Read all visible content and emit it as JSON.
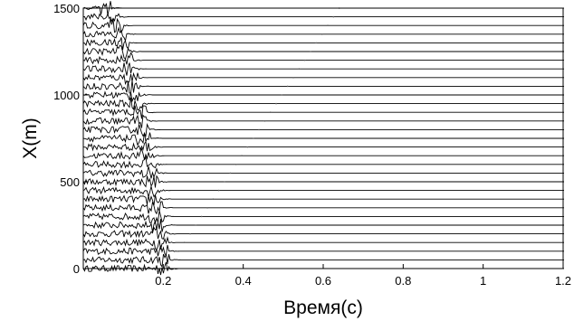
{
  "chart_data": {
    "type": "line",
    "chart_kind": "seismic-trace-gather",
    "xlabel": "Время(с)",
    "ylabel": "X(m)",
    "xlim": [
      0,
      1.2
    ],
    "ylim": [
      0,
      1500
    ],
    "x_ticks": [
      {
        "value": 0.2,
        "label": "0.2"
      },
      {
        "value": 0.4,
        "label": "0.4"
      },
      {
        "value": 0.6,
        "label": "0.6"
      },
      {
        "value": 0.8,
        "label": "0.8"
      },
      {
        "value": 1.0,
        "label": "1"
      },
      {
        "value": 1.2,
        "label": "1.2"
      }
    ],
    "y_ticks": [
      {
        "value": 0,
        "label": "0"
      },
      {
        "value": 500,
        "label": "500"
      },
      {
        "value": 1000,
        "label": "1000"
      },
      {
        "value": 1500,
        "label": "1500"
      }
    ],
    "trace_offsets": [
      0,
      50,
      100,
      150,
      200,
      250,
      300,
      350,
      400,
      450,
      500,
      550,
      600,
      650,
      700,
      750,
      800,
      850,
      900,
      950,
      1000,
      1050,
      1100,
      1150,
      1200,
      1250,
      1300,
      1350,
      1400,
      1450,
      1500
    ],
    "first_arrival_times": [
      0.205,
      0.203,
      0.2,
      0.197,
      0.194,
      0.191,
      0.188,
      0.185,
      0.182,
      0.179,
      0.176,
      0.172,
      0.168,
      0.164,
      0.16,
      0.156,
      0.152,
      0.148,
      0.143,
      0.138,
      0.133,
      0.128,
      0.123,
      0.118,
      0.112,
      0.106,
      0.1,
      0.093,
      0.085,
      0.075,
      0.06
    ],
    "grid": false,
    "legend": "none",
    "colors": {
      "trace": "#000000",
      "axis": "#000000",
      "background": "#ffffff"
    }
  }
}
